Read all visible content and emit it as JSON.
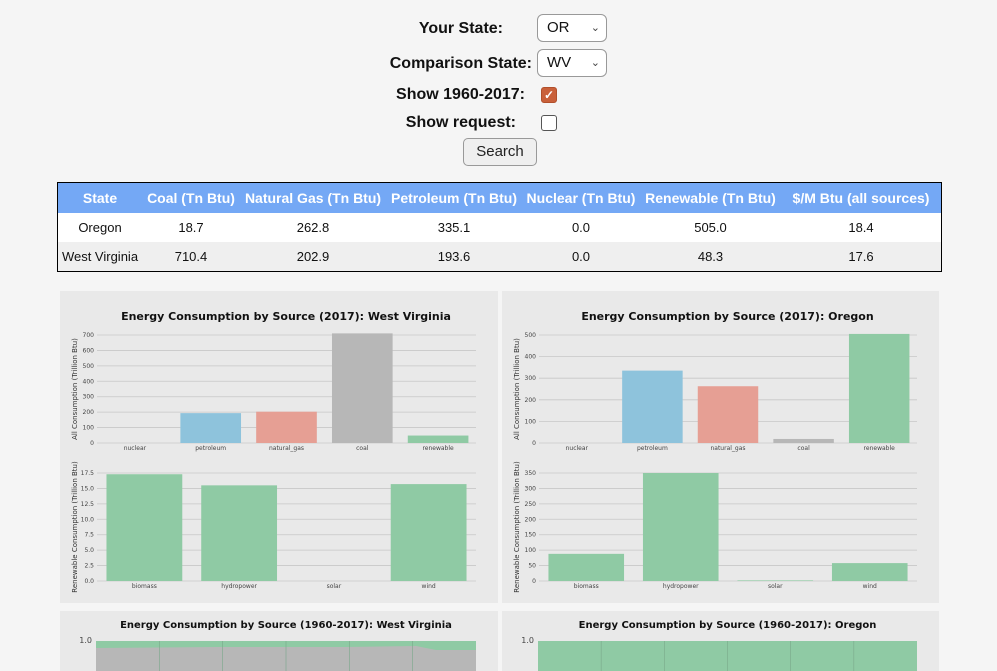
{
  "form": {
    "your_state_label": "Your State:",
    "your_state_value": "OR",
    "comparison_state_label": "Comparison State:",
    "comparison_state_value": "WV",
    "show_history_label": "Show 1960-2017:",
    "show_history_checked": true,
    "show_request_label": "Show request:",
    "show_request_checked": false,
    "search_label": "Search"
  },
  "table": {
    "headers": [
      "State",
      "Coal (Tn Btu)",
      "Natural Gas (Tn Btu)",
      "Petroleum (Tn Btu)",
      "Nuclear (Tn Btu)",
      "Renewable (Tn Btu)",
      "$/M Btu (all sources)"
    ],
    "rows": [
      [
        "Oregon",
        "18.7",
        "262.8",
        "335.1",
        "0.0",
        "505.0",
        "18.4"
      ],
      [
        "West Virginia",
        "710.4",
        "202.9",
        "193.6",
        "0.0",
        "48.3",
        "17.6"
      ]
    ]
  },
  "colors": {
    "header_bg": "#74a8f5",
    "blue": "#8ec3dc",
    "red": "#e69f94",
    "gray": "#b7b7b7",
    "green": "#8fcaa4"
  },
  "chart_data": [
    {
      "type": "bar",
      "title": "Energy Consumption by Source (2017): West Virginia",
      "top": {
        "ylabel": "All Consumption (Trillion Btu)",
        "categories": [
          "nuclear",
          "petroleum",
          "natural_gas",
          "coal",
          "renewable"
        ],
        "values": [
          0.0,
          193.6,
          202.9,
          710.4,
          48.3
        ],
        "colors": [
          "blue",
          "blue",
          "red",
          "gray",
          "green"
        ],
        "yticks": [
          "0",
          "100",
          "200",
          "300",
          "400",
          "500",
          "600",
          "700"
        ],
        "ylim": [
          0,
          700
        ]
      },
      "bottom": {
        "ylabel": "Renewable Consumption (Trillion Btu)",
        "categories": [
          "biomass",
          "hydropower",
          "solar",
          "wind"
        ],
        "values": [
          17.3,
          15.5,
          0.0,
          15.7
        ],
        "yticks": [
          "0.0",
          "2.5",
          "5.0",
          "7.5",
          "10.0",
          "12.5",
          "15.0",
          "17.5"
        ],
        "ylim": [
          0,
          17.5
        ]
      }
    },
    {
      "type": "bar",
      "title": "Energy Consumption by Source (2017): Oregon",
      "top": {
        "ylabel": "All Consumption (Trillion Btu)",
        "categories": [
          "nuclear",
          "petroleum",
          "natural_gas",
          "coal",
          "renewable"
        ],
        "values": [
          0.0,
          335.1,
          262.8,
          18.7,
          505.0
        ],
        "colors": [
          "blue",
          "blue",
          "red",
          "gray",
          "green"
        ],
        "yticks": [
          "0",
          "100",
          "200",
          "300",
          "400",
          "500"
        ],
        "ylim": [
          0,
          500
        ]
      },
      "bottom": {
        "ylabel": "Renewable Consumption (Trillion Btu)",
        "categories": [
          "biomass",
          "hydropower",
          "solar",
          "wind"
        ],
        "values": [
          88,
          350,
          2,
          58
        ],
        "yticks": [
          "0",
          "50",
          "100",
          "150",
          "200",
          "250",
          "300",
          "350"
        ],
        "ylim": [
          0,
          350
        ]
      }
    },
    {
      "type": "area",
      "title": "Energy Consumption by Source (1960-2017): West Virginia",
      "yticks": [
        "1.0"
      ]
    },
    {
      "type": "area",
      "title": "Energy Consumption by Source (1960-2017): Oregon",
      "yticks": [
        "1.0"
      ]
    }
  ]
}
